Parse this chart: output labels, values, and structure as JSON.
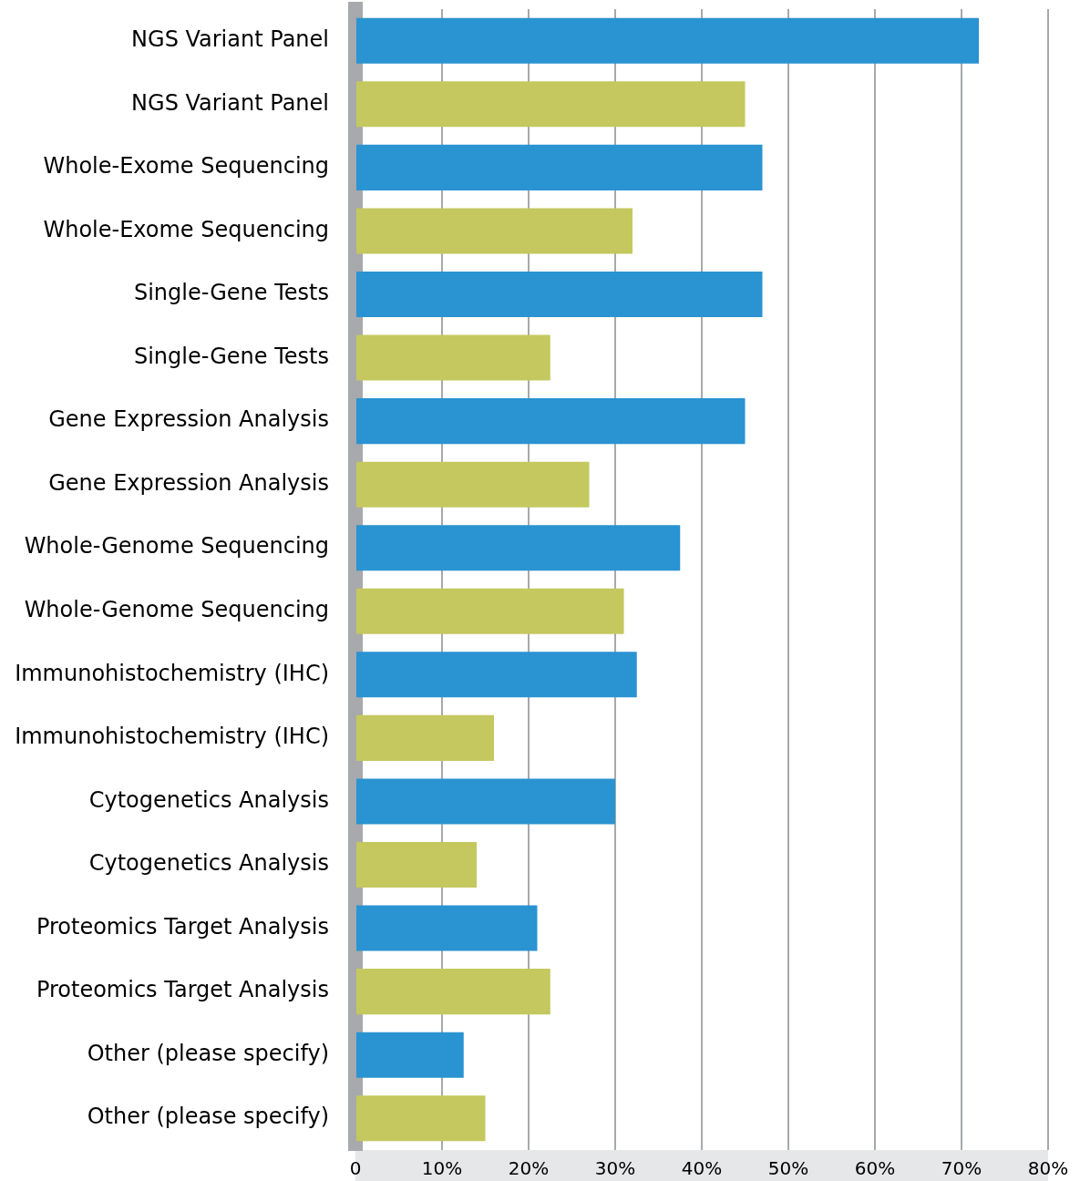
{
  "chart_data": {
    "type": "bar",
    "orientation": "horizontal",
    "categories": [
      "NGS Variant Panel",
      "NGS Variant Panel",
      "Whole-Exome Sequencing",
      "Whole-Exome Sequencing",
      "Single-Gene Tests",
      "Single-Gene Tests",
      "Gene Expression Analysis",
      "Gene Expression Analysis",
      "Whole-Genome Sequencing",
      "Whole-Genome Sequencing",
      "Immunohistochemistry (IHC)",
      "Immunohistochemistry (IHC)",
      "Cytogenetics Analysis",
      "Cytogenetics Analysis",
      "Proteomics Target Analysis",
      "Proteomics Target Analysis",
      "Other (please specify)",
      "Other (please specify)"
    ],
    "values": [
      72,
      45,
      47,
      32,
      47,
      22.5,
      45,
      27,
      37.5,
      31,
      32.5,
      16,
      30,
      14,
      21,
      22.5,
      12.5,
      15
    ],
    "colors": [
      "#2a93d1",
      "#c4c85e",
      "#2a93d1",
      "#c4c85e",
      "#2a93d1",
      "#c4c85e",
      "#2a93d1",
      "#c4c85e",
      "#2a93d1",
      "#c4c85e",
      "#2a93d1",
      "#c4c85e",
      "#2a93d1",
      "#c4c85e",
      "#2a93d1",
      "#c4c85e",
      "#2a93d1",
      "#c4c85e"
    ],
    "xlim": [
      0,
      80
    ],
    "xticks": [
      0,
      {
        "value": 10,
        "label": "10%"
      },
      {
        "value": 20,
        "label": "20%"
      },
      {
        "value": 30,
        "label": "30%"
      },
      {
        "value": 40,
        "label": "40%"
      },
      {
        "value": 50,
        "label": "50%"
      },
      {
        "value": 60,
        "label": "60%"
      },
      {
        "value": 70,
        "label": "70%"
      },
      {
        "value": 80,
        "label": "80%"
      }
    ],
    "grid": "x"
  }
}
